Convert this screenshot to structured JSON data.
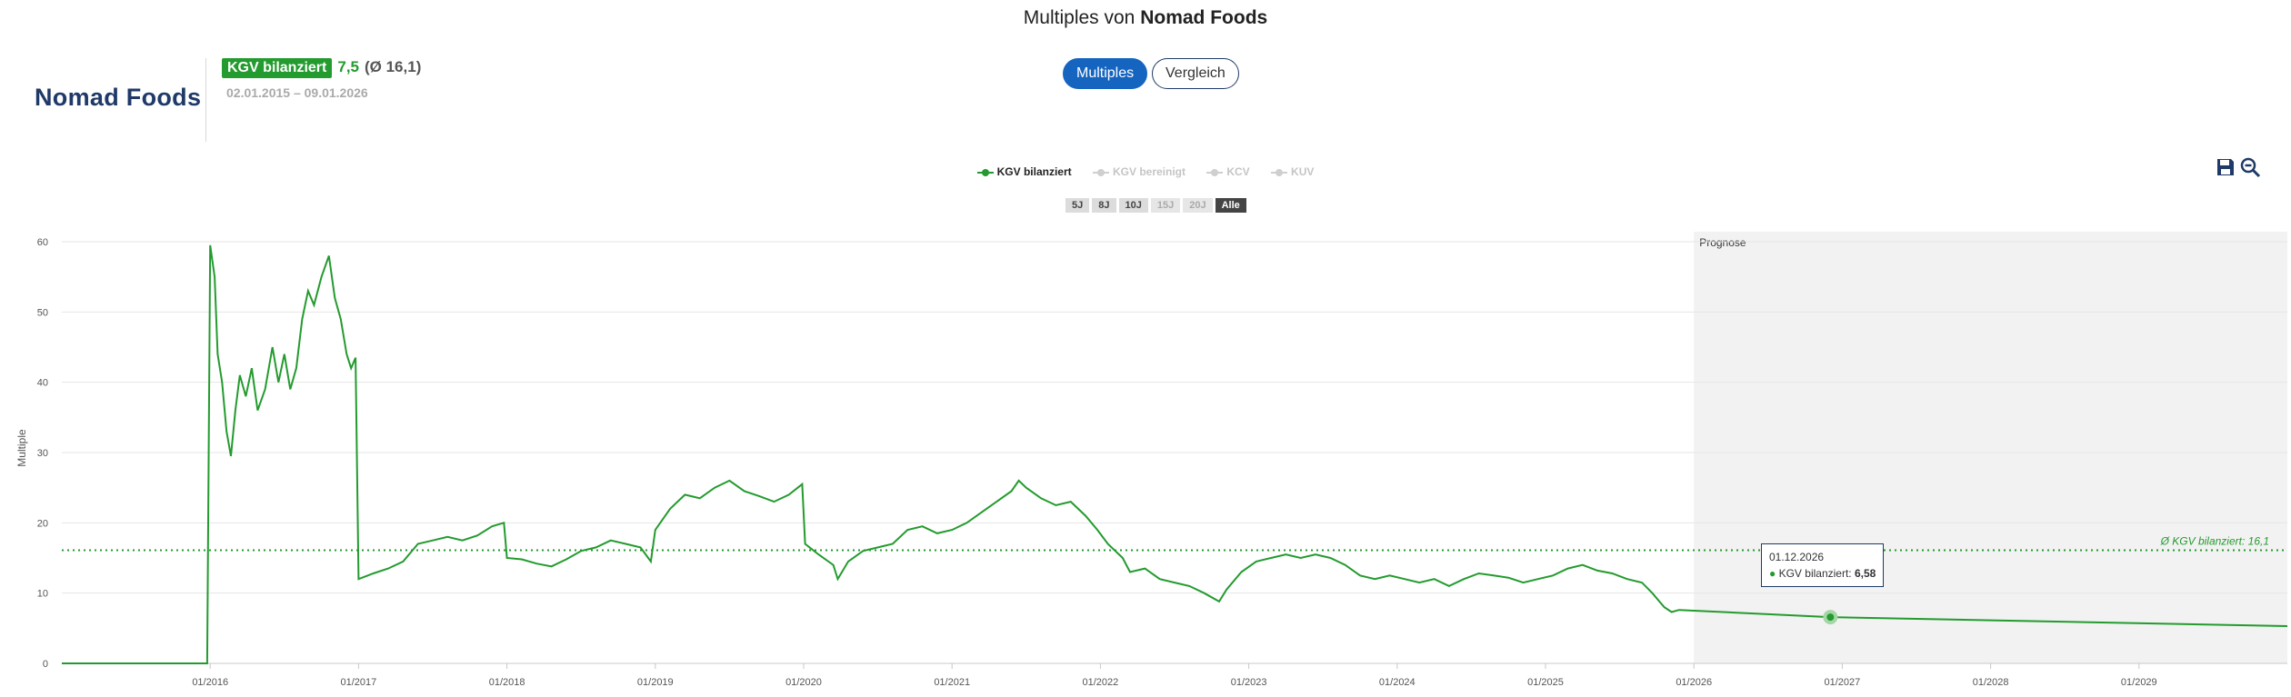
{
  "header": {
    "title_prefix": "Multiples von",
    "title_company": "Nomad Foods"
  },
  "logo": {
    "text": "Nomad Foods"
  },
  "kpi": {
    "label": "KGV bilanziert",
    "value": "7,5",
    "average": "(Ø 16,1)",
    "date_range": "02.01.2015 – 09.01.2026"
  },
  "view_toggle": {
    "multiples": "Multiples",
    "vergleich": "Vergleich"
  },
  "legend": [
    "KGV bilanziert",
    "KGV bereinigt",
    "KCV",
    "KUV"
  ],
  "ranges": [
    "5J",
    "8J",
    "10J",
    "15J",
    "20J",
    "Alle"
  ],
  "tooltip": {
    "date": "01.12.2026",
    "series": "KGV bilanziert:",
    "value": "6,58"
  },
  "colors": {
    "series": "#239b2e",
    "accent": "#1565c0",
    "brand": "#1f3a68",
    "forecast_bg": "#f2f2f2"
  },
  "icons": {
    "save": "floppy-disk-icon",
    "zoom": "zoom-out-icon"
  },
  "chart_data": {
    "type": "line",
    "ylabel": "Multiple",
    "ylim": [
      0,
      60
    ],
    "yticks": [
      0,
      10,
      20,
      30,
      40,
      50,
      60
    ],
    "xlim": [
      2015.0,
      2030.0
    ],
    "xticks": [
      {
        "x": 2016,
        "label": "01/2016"
      },
      {
        "x": 2017,
        "label": "01/2017"
      },
      {
        "x": 2018,
        "label": "01/2018"
      },
      {
        "x": 2019,
        "label": "01/2019"
      },
      {
        "x": 2020,
        "label": "01/2020"
      },
      {
        "x": 2021,
        "label": "01/2021"
      },
      {
        "x": 2022,
        "label": "01/2022"
      },
      {
        "x": 2023,
        "label": "01/2023"
      },
      {
        "x": 2024,
        "label": "01/2024"
      },
      {
        "x": 2025,
        "label": "01/2025"
      },
      {
        "x": 2026,
        "label": "01/2026"
      },
      {
        "x": 2027,
        "label": "01/2027"
      },
      {
        "x": 2028,
        "label": "01/2028"
      },
      {
        "x": 2029,
        "label": "01/2029"
      }
    ],
    "forecast_start": 2026.0,
    "forecast_label": "Prognose",
    "average": {
      "value": 16.1,
      "label": "Ø KGV bilanziert: 16,1"
    },
    "highlight": {
      "x": 2026.92,
      "y": 6.58
    },
    "series": [
      {
        "name": "KGV bilanziert",
        "points": [
          [
            2015.0,
            0
          ],
          [
            2015.98,
            0
          ],
          [
            2016.0,
            59.5
          ],
          [
            2016.03,
            55
          ],
          [
            2016.05,
            44
          ],
          [
            2016.08,
            40
          ],
          [
            2016.11,
            33
          ],
          [
            2016.14,
            29.5
          ],
          [
            2016.17,
            36
          ],
          [
            2016.2,
            41
          ],
          [
            2016.24,
            38
          ],
          [
            2016.28,
            42
          ],
          [
            2016.32,
            36
          ],
          [
            2016.37,
            39
          ],
          [
            2016.42,
            45
          ],
          [
            2016.46,
            40
          ],
          [
            2016.5,
            44
          ],
          [
            2016.54,
            39
          ],
          [
            2016.58,
            42
          ],
          [
            2016.62,
            49
          ],
          [
            2016.66,
            53
          ],
          [
            2016.7,
            51
          ],
          [
            2016.75,
            55
          ],
          [
            2016.8,
            58
          ],
          [
            2016.84,
            52
          ],
          [
            2016.88,
            49
          ],
          [
            2016.92,
            44
          ],
          [
            2016.95,
            42
          ],
          [
            2016.98,
            43.5
          ],
          [
            2017.0,
            12
          ],
          [
            2017.1,
            12.8
          ],
          [
            2017.2,
            13.5
          ],
          [
            2017.3,
            14.5
          ],
          [
            2017.4,
            17
          ],
          [
            2017.5,
            17.5
          ],
          [
            2017.6,
            18
          ],
          [
            2017.7,
            17.5
          ],
          [
            2017.8,
            18.2
          ],
          [
            2017.9,
            19.5
          ],
          [
            2017.98,
            20
          ],
          [
            2018.0,
            15
          ],
          [
            2018.1,
            14.8
          ],
          [
            2018.2,
            14.2
          ],
          [
            2018.3,
            13.8
          ],
          [
            2018.4,
            14.8
          ],
          [
            2018.5,
            16
          ],
          [
            2018.6,
            16.5
          ],
          [
            2018.7,
            17.5
          ],
          [
            2018.8,
            17
          ],
          [
            2018.9,
            16.5
          ],
          [
            2018.97,
            14.5
          ],
          [
            2019.0,
            19
          ],
          [
            2019.1,
            22
          ],
          [
            2019.2,
            24
          ],
          [
            2019.3,
            23.5
          ],
          [
            2019.4,
            25
          ],
          [
            2019.5,
            26
          ],
          [
            2019.6,
            24.5
          ],
          [
            2019.7,
            23.8
          ],
          [
            2019.8,
            23
          ],
          [
            2019.9,
            24
          ],
          [
            2019.99,
            25.5
          ],
          [
            2020.01,
            17
          ],
          [
            2020.1,
            15.5
          ],
          [
            2020.2,
            14
          ],
          [
            2020.23,
            12
          ],
          [
            2020.3,
            14.5
          ],
          [
            2020.4,
            16
          ],
          [
            2020.5,
            16.5
          ],
          [
            2020.6,
            17
          ],
          [
            2020.7,
            19
          ],
          [
            2020.8,
            19.5
          ],
          [
            2020.9,
            18.5
          ],
          [
            2021.0,
            19
          ],
          [
            2021.1,
            20
          ],
          [
            2021.2,
            21.5
          ],
          [
            2021.3,
            23
          ],
          [
            2021.4,
            24.5
          ],
          [
            2021.45,
            26
          ],
          [
            2021.5,
            25
          ],
          [
            2021.6,
            23.5
          ],
          [
            2021.7,
            22.5
          ],
          [
            2021.8,
            23
          ],
          [
            2021.9,
            21
          ],
          [
            2021.98,
            19
          ],
          [
            2022.05,
            17
          ],
          [
            2022.15,
            15
          ],
          [
            2022.2,
            13
          ],
          [
            2022.3,
            13.5
          ],
          [
            2022.4,
            12
          ],
          [
            2022.5,
            11.5
          ],
          [
            2022.6,
            11
          ],
          [
            2022.7,
            10
          ],
          [
            2022.8,
            8.8
          ],
          [
            2022.85,
            10.5
          ],
          [
            2022.95,
            13
          ],
          [
            2023.05,
            14.5
          ],
          [
            2023.15,
            15
          ],
          [
            2023.25,
            15.5
          ],
          [
            2023.35,
            15
          ],
          [
            2023.45,
            15.5
          ],
          [
            2023.55,
            15
          ],
          [
            2023.65,
            14
          ],
          [
            2023.75,
            12.5
          ],
          [
            2023.85,
            12
          ],
          [
            2023.95,
            12.5
          ],
          [
            2024.05,
            12
          ],
          [
            2024.15,
            11.5
          ],
          [
            2024.25,
            12
          ],
          [
            2024.35,
            11
          ],
          [
            2024.45,
            12
          ],
          [
            2024.55,
            12.8
          ],
          [
            2024.65,
            12.5
          ],
          [
            2024.75,
            12.2
          ],
          [
            2024.85,
            11.5
          ],
          [
            2024.95,
            12
          ],
          [
            2025.05,
            12.5
          ],
          [
            2025.15,
            13.5
          ],
          [
            2025.25,
            14
          ],
          [
            2025.35,
            13.2
          ],
          [
            2025.45,
            12.8
          ],
          [
            2025.55,
            12
          ],
          [
            2025.65,
            11.5
          ],
          [
            2025.72,
            10
          ],
          [
            2025.8,
            8
          ],
          [
            2025.85,
            7.3
          ],
          [
            2025.9,
            7.6
          ],
          [
            2026.0,
            7.5
          ],
          [
            2026.92,
            6.58
          ],
          [
            2030.0,
            5.3
          ]
        ]
      }
    ]
  }
}
